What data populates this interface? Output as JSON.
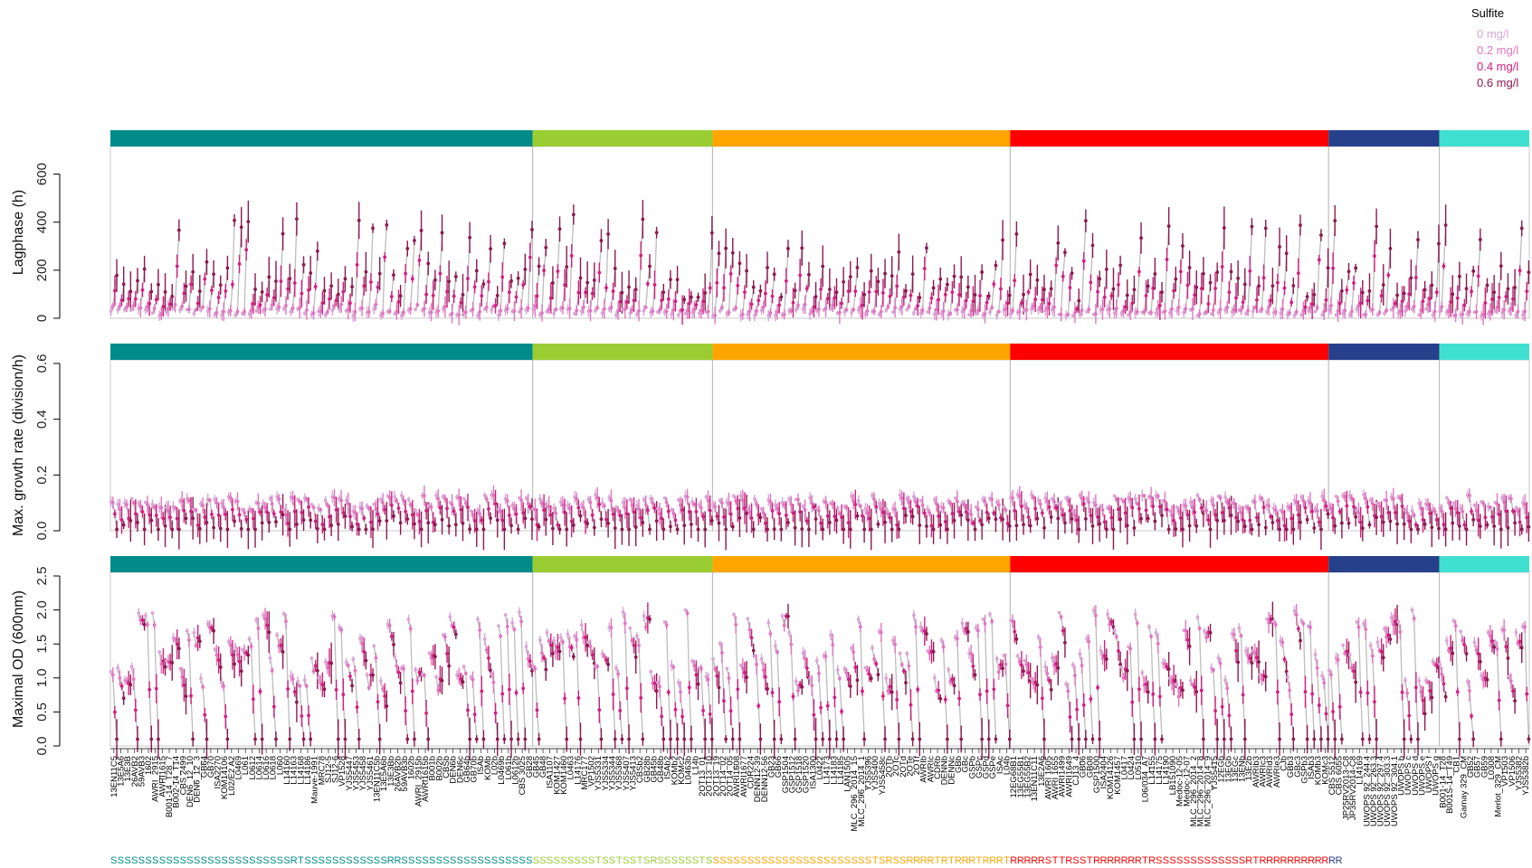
{
  "legend": {
    "title": "Sulfite",
    "entries": [
      {
        "label": "0 mg/l",
        "color": "#d9a6d5"
      },
      {
        "label": "0.2 mg/l",
        "color": "#e077bf"
      },
      {
        "label": "0.4 mg/l",
        "color": "#d1207f"
      },
      {
        "label": "0.6 mg/l",
        "color": "#8b1a4f"
      }
    ]
  },
  "colors": {
    "connector": "#bdbdbd",
    "group_colors": [
      "#008b8b",
      "#9acd32",
      "#ffa500",
      "#ff0000",
      "#27408b",
      "#40e0d0"
    ]
  },
  "groups": [
    {
      "start": 0,
      "count": 61
    },
    {
      "start": 61,
      "count": 26
    },
    {
      "start": 87,
      "count": 43
    },
    {
      "start": 130,
      "count": 46
    },
    {
      "start": 176,
      "count": 16
    },
    {
      "start": 192,
      "count": 13
    }
  ],
  "strains": [
    "13EN11C5",
    "13E5A6",
    "13E3B",
    "26AVB2",
    "59AVB3",
    "1602",
    "AWRI_2915",
    "AWRI1615",
    "B001-14_T28_7",
    "B002-14_T14",
    "CBS 2499",
    "DEN6_12_10",
    "DEN6_12_3",
    "GB64",
    "GB70",
    "ISA2270",
    "KOM14106",
    "L02/E2 A2",
    "L0469",
    "L061",
    "L0612",
    "L0614",
    "L0616",
    "L0618",
    "L060",
    "L14160",
    "L14163",
    "L14168",
    "L14186",
    "Mauve-1991",
    "MRC78",
    "SJ12-5",
    "SJ12-6",
    "VP1528",
    "YJS5447",
    "YJS5453",
    "YJS5458",
    "YJS5461",
    "13EN11C5b",
    "13E5A6b",
    "13E3Bb",
    "26AVB2b",
    "59AVB3b",
    "1602b",
    "AWRI_2915b",
    "AWRI1615b",
    "B001b",
    "B002b",
    "CBSb",
    "DEN6b",
    "DEN6c",
    "GB64b",
    "GB70b",
    "ISAb",
    "KOMb",
    "L02b",
    "L0469b",
    "L061b",
    "L0612b",
    "CBS 3025",
    "GB28",
    "GB45",
    "GB48",
    "ISA1107",
    "KOM1427",
    "KOM1460",
    "L0463",
    "L14176",
    "MRC177",
    "VP1502",
    "YJS5331",
    "YJS5334",
    "YJS5344",
    "YJS5368",
    "YJS5407",
    "YJS5413",
    "CBSb2",
    "GB28b",
    "GB45b",
    "GB48b",
    "ISAb2",
    "KOMb2",
    "KOMc2",
    "L0463b",
    "L14b",
    "2OT13_01",
    "2OT13_10",
    "2OT13_19",
    "2OT14_02",
    "2OT14_05",
    "AWRI1608",
    "AWRI1677",
    "CDR224",
    "DENN12-39",
    "DENN12-56",
    "GB23",
    "GB66",
    "GSP1504",
    "GSP1512",
    "GSP1518",
    "GSP1520",
    "ISA1300",
    "L0422",
    "L14173",
    "L14183",
    "L14185",
    "LAN1505",
    "MLC_296_2014_15",
    "MLC_296_2014_1",
    "YJS5396",
    "YJS5400",
    "YJS5458c",
    "2OTb",
    "2OTc",
    "2OTd",
    "2OTe",
    "2OTf",
    "AWRIb",
    "AWRIc",
    "CDRb",
    "DENNb",
    "DENNc",
    "GBb",
    "GBc",
    "GSPb",
    "GSPc",
    "GSPd",
    "GSPe",
    "ISAc",
    "L04b",
    "12EG68B1",
    "13EG55B1",
    "13EG55B2",
    "13EN11C11",
    "13E2A6",
    "AWRI 1605",
    "AWRI 1655",
    "AWRI1499",
    "AWRI1649",
    "CJ13_4",
    "GB06",
    "GB08",
    "GSP1500",
    "ISA2404",
    "KOM14126",
    "KOM1457",
    "L0417",
    "L0424",
    "L0510",
    "L06/034_A7",
    "L14155",
    "L14175",
    "L14190",
    "LB151090",
    "Medoc-12-05",
    "Medoc-12-07",
    "MLC_296_2014_2",
    "MLC_296_2014_8",
    "MLC_296_2014_9",
    "YJS5415",
    "12EGb",
    "13EGb",
    "13EGc",
    "13ENb",
    "13E2b",
    "AWRIb3",
    "AWRIc3",
    "AWRId3",
    "AWRIe3",
    "CJb",
    "GBb3",
    "GBc3",
    "GSPb3",
    "ISAb3",
    "KOMb3",
    "KOMc3",
    "CBS 5512",
    "CBS 6055",
    "JP25RV2013-C8",
    "JP35RV2014-C8",
    "L14169",
    "UWOPS 92_244.4",
    "UWOPS 92_263.3",
    "UWOPS 92_297.4",
    "UWOPS 92_303.3",
    "UWOPS 92_304.1",
    "UWOPS b",
    "UWOPS c",
    "UWOPS d",
    "UWOPS e",
    "UWOPS f",
    "UWOPS g",
    "B001-14_T28",
    "B001S-14_T49",
    "CB1",
    "Gamay 329_CM",
    "GB52",
    "GB57",
    "GB59",
    "L0308",
    "Merlot_329_CM",
    "VP1503",
    "VP1506",
    "YJS5382",
    "YJS5382b"
  ],
  "status": "SSSSSSSSSSSSSSSSSSSSSSSSSSRTSSSSSSSSSSSSRRSSSSSSSSSSSSSSSSSSSSSSSSSSSSTSSTSSTSRSSSSSSTSSSSSSSSSSSSSSSSSSSSSSSSTSRSSRRRRTRTRRRTRRRTRRRRRSTTRSSTRRRRRRRTRSSSSSSSSSSSSSRTRRRRRRRRRRRR",
  "chart_data": [
    {
      "type": "scatter",
      "ylabel": "Lagphase (h)",
      "ylim": [
        0,
        700
      ],
      "yticks": [
        0,
        200,
        400,
        600
      ],
      "grid": false,
      "panel": "lag"
    },
    {
      "type": "scatter",
      "ylabel": "Max. growth rate (division/h)",
      "ylim": [
        0,
        0.6
      ],
      "yticks": [
        0.0,
        0.2,
        0.4,
        0.6
      ],
      "grid": false,
      "panel": "rate"
    },
    {
      "type": "scatter",
      "ylabel": "Maximal OD (600nm)",
      "ylim": [
        0,
        2.5
      ],
      "yticks": [
        0.0,
        0.5,
        1.0,
        1.5,
        2.0,
        2.5
      ],
      "grid": false,
      "panel": "od"
    }
  ]
}
